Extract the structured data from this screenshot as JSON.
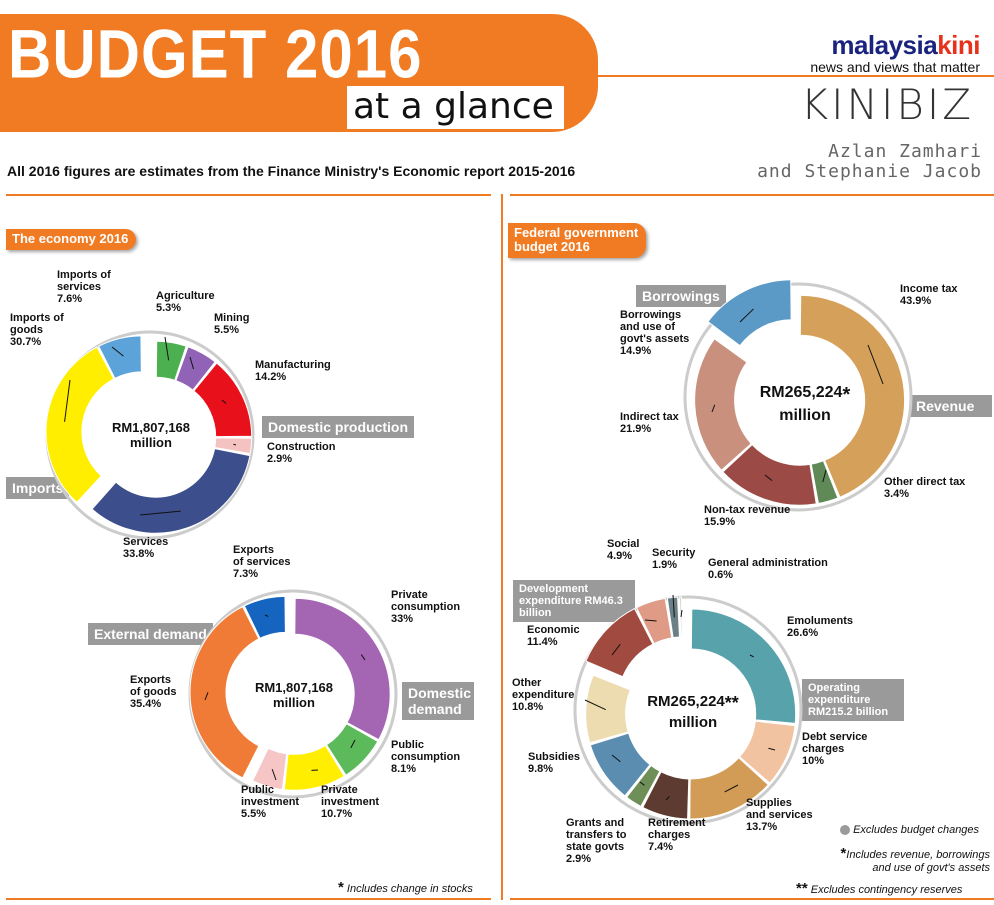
{
  "header": {
    "title": "BUDGET 2016",
    "subtitle": "at a glance",
    "brand_main_a": "malaysia",
    "brand_main_b": "kini",
    "brand_tagline": "news and views that matter",
    "kinibiz": "KINIBIZ",
    "author_line1": "Azlan Zamhari",
    "author_line2": "and Stephanie Jacob",
    "note": "All 2016 figures are estimates from the Finance Ministry's Economic report 2015-2016"
  },
  "colors": {
    "accent": "#f07b23",
    "group_box": "#9a9a9a",
    "ring": "#cccccc"
  },
  "chart_data": [
    {
      "type": "pie",
      "title": "The economy 2016",
      "center_line1": "RM1,807,168",
      "center_line2": "million",
      "groups": [
        "Domestic production",
        "Imports"
      ],
      "categories": [
        "Agriculture",
        "Mining",
        "Manufacturing",
        "Construction",
        "Services",
        "Imports of goods",
        "Imports of services"
      ],
      "values": [
        5.3,
        5.5,
        14.2,
        2.9,
        33.8,
        30.7,
        7.6
      ],
      "value_labels": [
        "5.3%",
        "5.5%",
        "14.2%",
        "2.9%",
        "33.8%",
        "30.7%",
        "7.6%"
      ],
      "label_lines": [
        [
          "Agriculture",
          "5.3%"
        ],
        [
          "Mining",
          "5.5%"
        ],
        [
          "Manufacturing",
          "14.2%"
        ],
        [
          "Construction",
          "2.9%"
        ],
        [
          "Services",
          "33.8%"
        ],
        [
          "Imports of",
          "goods",
          "30.7%"
        ],
        [
          "Imports of",
          "services",
          "7.6%"
        ]
      ],
      "colors": [
        "#4caf50",
        "#9163b6",
        "#e8101a",
        "#f4c2c0",
        "#3c4f8c",
        "#ffee00",
        "#5ba3d9"
      ]
    },
    {
      "type": "pie",
      "title": "",
      "center_line1": "RM1,807,168",
      "center_line2": "million",
      "groups": [
        "Domestic demand",
        "External demand"
      ],
      "categories": [
        "Private consumption",
        "Public consumption",
        "Private investment",
        "Public investment",
        "Exports of goods",
        "Exports of services"
      ],
      "values": [
        33,
        8.1,
        10.7,
        5.5,
        35.4,
        7.3
      ],
      "value_labels": [
        "33%",
        "8.1%",
        "10.7%",
        "5.5%",
        "35.4%",
        "7.3%"
      ],
      "label_lines": [
        [
          "Private",
          "consumption",
          "33%"
        ],
        [
          "Public",
          "consumption",
          "8.1%"
        ],
        [
          "Private",
          "investment",
          "10.7%"
        ],
        [
          "Public",
          "investment",
          "5.5%"
        ],
        [
          "Exports",
          "of goods",
          "35.4%"
        ],
        [
          "Exports",
          "of services",
          "7.3%"
        ]
      ],
      "colors": [
        "#a466b3",
        "#5dba5a",
        "#ffee00",
        "#f5c6c5",
        "#f07b36",
        "#1565c0"
      ],
      "footnote": "Includes change in stocks"
    },
    {
      "type": "pie",
      "title": "Federal government budget 2016",
      "title_line1": "Federal government",
      "title_line2": "budget 2016",
      "center_line1": "RM265,224",
      "center_line2": "million",
      "groups": [
        "Revenue",
        "Borrowings"
      ],
      "categories": [
        "Income tax",
        "Other direct tax",
        "Non-tax revenue",
        "Indirect tax",
        "Borrowings and use of govt's assets"
      ],
      "values": [
        43.9,
        3.4,
        15.9,
        21.9,
        14.9
      ],
      "value_labels": [
        "43.9%",
        "3.4%",
        "15.9%",
        "21.9%",
        "14.9%"
      ],
      "label_lines": [
        [
          "Income tax",
          "43.9%"
        ],
        [
          "Other direct tax",
          "3.4%"
        ],
        [
          "Non-tax revenue",
          "15.9%"
        ],
        [
          "Indirect tax",
          "21.9%"
        ],
        [
          "Borrowings",
          "and use of",
          "govt's assets",
          "14.9%"
        ]
      ],
      "colors": [
        "#d5a15a",
        "#5f8a57",
        "#9b4a45",
        "#c9907e",
        "#5b9ac6"
      ]
    },
    {
      "type": "pie",
      "title": "",
      "center_line1": "RM265,224",
      "center_line2": "million",
      "groups": [
        "Operating expenditure RM215.2 billion",
        "Development expenditure RM46.3 billion"
      ],
      "categories": [
        "Emoluments",
        "Debt service charges",
        "Supplies and services",
        "Retirement charges",
        "Grants and transfers to state govts",
        "Subsidies",
        "Other expenditure",
        "Economic",
        "Social",
        "Security",
        "General administration"
      ],
      "values": [
        26.6,
        10,
        13.7,
        7.4,
        2.9,
        9.8,
        10.8,
        11.4,
        4.9,
        1.9,
        0.6
      ],
      "value_labels": [
        "26.6%",
        "10%",
        "13.7%",
        "7.4%",
        "2.9%",
        "9.8%",
        "10.8%",
        "11.4%",
        "4.9%",
        "1.9%",
        "0.6%"
      ],
      "label_lines": [
        [
          "Emoluments",
          "26.6%"
        ],
        [
          "Debt service",
          "charges",
          "10%"
        ],
        [
          "Supplies",
          "and services",
          "13.7%"
        ],
        [
          "Retirement",
          "charges",
          "7.4%"
        ],
        [
          "Grants and",
          "transfers to",
          "state govts",
          "2.9%"
        ],
        [
          "Subsidies",
          "9.8%"
        ],
        [
          "Other",
          "expenditure",
          "10.8%"
        ],
        [
          "Economic",
          "11.4%"
        ],
        [
          "Social",
          "4.9%"
        ],
        [
          "Security",
          "1.9%"
        ],
        [
          "General administration",
          "0.6%"
        ]
      ],
      "colors": [
        "#58a2ac",
        "#f1c3a1",
        "#d29c56",
        "#5e3b31",
        "#6e8f57",
        "#5a8db0",
        "#ecdcaf",
        "#a04a40",
        "#e09b87",
        "#6b7f86",
        "#d0c1a0"
      ]
    }
  ],
  "legend": {
    "note_dot": "Excludes budget changes",
    "note_star": "Includes revenue, borrowings",
    "note_star_2": "and use of govt's assets",
    "note_dstar": "Excludes contingency reserves"
  },
  "symbols": {
    "star": "*",
    "dstar": "**"
  }
}
